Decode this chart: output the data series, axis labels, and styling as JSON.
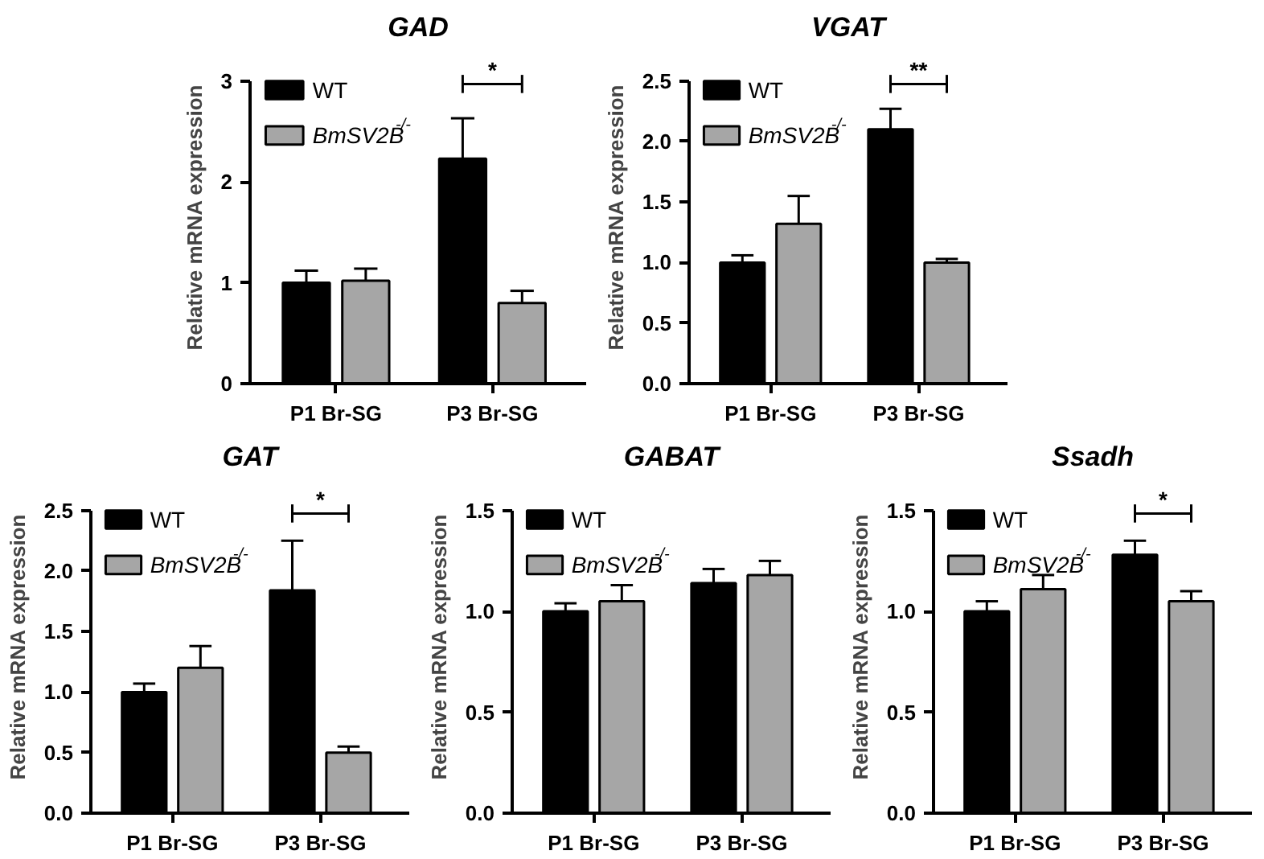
{
  "chart_data": [
    {
      "type": "bar",
      "title": "GAD",
      "ylabel": "Relative mRNA expression",
      "categories": [
        "P1 Br-SG",
        "P3 Br-SG"
      ],
      "ylim": [
        0,
        3
      ],
      "yticks": [
        0,
        1,
        2,
        3
      ],
      "legend": "top left",
      "annotations": [
        "*"
      ],
      "series": [
        {
          "name": "WT",
          "color": "#000000",
          "values": [
            1.0,
            2.23
          ],
          "errors": [
            0.12,
            0.4
          ]
        },
        {
          "name": "BmSV2B$^{-/-}$",
          "color": "#a6a6a6",
          "values": [
            1.02,
            0.8
          ],
          "errors": [
            0.12,
            0.12
          ]
        }
      ]
    },
    {
      "type": "bar",
      "title": "VGAT",
      "ylabel": "Relative mRNA expression",
      "categories": [
        "P1 Br-SG",
        "P3 Br-SG"
      ],
      "ylim": [
        0,
        2.5
      ],
      "yticks": [
        {
          "value": 0,
          "label": "0.0"
        },
        {
          "value": 0.5,
          "label": "0.5"
        },
        {
          "value": 1,
          "label": "1.0"
        },
        {
          "value": 1.5,
          "label": "1.5"
        },
        {
          "value": 2,
          "label": "2.0"
        },
        {
          "value": 2.5,
          "label": "2.5"
        }
      ],
      "legend": "top left",
      "annotations": [
        "**"
      ],
      "series": [
        {
          "name": "WT",
          "color": "#000000",
          "values": [
            1.0,
            2.1
          ],
          "errors": [
            0.06,
            0.17
          ]
        },
        {
          "name": "BmSV2B$^{-/-}$",
          "color": "#a6a6a6",
          "values": [
            1.32,
            1.0
          ],
          "errors": [
            0.23,
            0.03
          ]
        }
      ]
    },
    {
      "type": "bar",
      "title": "GAT",
      "ylabel": "Relative mRNA expression",
      "categories": [
        "P1 Br-SG",
        "P3 Br-SG"
      ],
      "ylim": [
        0,
        2.5
      ],
      "yticks": [
        {
          "value": 0,
          "label": "0.0"
        },
        {
          "value": 0.5,
          "label": "0.5"
        },
        {
          "value": 1,
          "label": "1.0"
        },
        {
          "value": 1.5,
          "label": "1.5"
        },
        {
          "value": 2,
          "label": "2.0"
        },
        {
          "value": 2.5,
          "label": "2.5"
        }
      ],
      "legend": "top left",
      "annotations": [
        "*"
      ],
      "series": [
        {
          "name": "WT",
          "color": "#000000",
          "values": [
            1.0,
            1.84
          ],
          "errors": [
            0.07,
            0.41
          ]
        },
        {
          "name": "BmSV2B$^{-/-}$",
          "color": "#a6a6a6",
          "values": [
            1.2,
            0.5
          ],
          "errors": [
            0.18,
            0.05
          ]
        }
      ]
    },
    {
      "type": "bar",
      "title": "GABAT",
      "ylabel": "Relative mRNA expression",
      "categories": [
        "P1 Br-SG",
        "P3 Br-SG"
      ],
      "ylim": [
        0,
        1.5
      ],
      "yticks": [
        {
          "value": 0,
          "label": "0.0"
        },
        {
          "value": 0.5,
          "label": "0.5"
        },
        {
          "value": 1,
          "label": "1.0"
        },
        {
          "value": 1.5,
          "label": "1.5"
        }
      ],
      "legend": "top left",
      "series": [
        {
          "name": "WT",
          "color": "#000000",
          "values": [
            1.0,
            1.14
          ],
          "errors": [
            0.04,
            0.07
          ]
        },
        {
          "name": "BmSV2B$^{-/-}$",
          "color": "#a6a6a6",
          "values": [
            1.05,
            1.18
          ],
          "errors": [
            0.08,
            0.07
          ]
        }
      ]
    },
    {
      "type": "bar",
      "title": "Ssadh",
      "ylabel": "Relative mRNA expression",
      "categories": [
        "P1 Br-SG",
        "P3 Br-SG"
      ],
      "ylim": [
        0,
        1.5
      ],
      "yticks": [
        {
          "value": 0,
          "label": "0.0"
        },
        {
          "value": 0.5,
          "label": "0.5"
        },
        {
          "value": 1,
          "label": "1.0"
        },
        {
          "value": 1.5,
          "label": "1.5"
        }
      ],
      "legend": "top left",
      "annotations": [
        "*"
      ],
      "series": [
        {
          "name": "WT",
          "color": "#000000",
          "values": [
            1.0,
            1.28
          ],
          "errors": [
            0.05,
            0.07
          ]
        },
        {
          "name": "BmSV2B$^{-/-}$",
          "color": "#a6a6a6",
          "values": [
            1.11,
            1.05
          ],
          "errors": [
            0.07,
            0.05
          ]
        }
      ]
    }
  ]
}
